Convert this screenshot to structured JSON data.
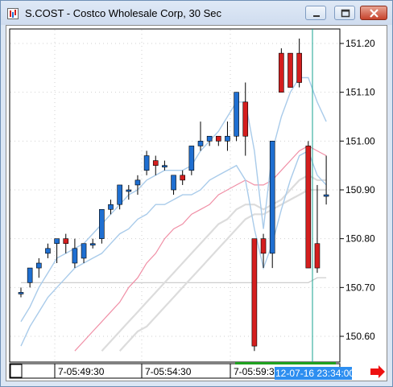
{
  "window": {
    "title": "S.COST - Costco Wholesale Corp, 30 Sec",
    "icons": {
      "app": "chart-app-icon",
      "minimize": "minimize-icon",
      "maximize": "maximize-icon",
      "close": "close-icon",
      "scroll": "right-arrow-icon"
    }
  },
  "chart_data": {
    "type": "candlestick",
    "symbol": "S.COST",
    "interval": "30 Sec",
    "y_ticks": [
      "151.20",
      "151.10",
      "151.00",
      "150.90",
      "150.80",
      "150.70",
      "150.60"
    ],
    "x_labels": [
      "7-05:49:30",
      "7-05:54:30",
      "7-05:59:3"
    ],
    "cursor_label": "12-07-16 23:34:00",
    "ylim": [
      150.55,
      151.25
    ],
    "grid": true,
    "colors": {
      "up": "#1f6fd1",
      "down": "#d41e1e",
      "band": "#a9cbea",
      "ma_pink": "#f08fa6",
      "ma_gray": "#dcdcdc",
      "ma_long": "#c8c8c8",
      "cursor": "#17a390",
      "cursor_label_bg": "#2d8ef0"
    },
    "candles": [
      {
        "o": 150.69,
        "h": 150.7,
        "l": 150.68,
        "c": 150.69
      },
      {
        "o": 150.71,
        "h": 150.74,
        "l": 150.7,
        "c": 150.74
      },
      {
        "o": 150.74,
        "h": 150.76,
        "l": 150.72,
        "c": 150.75
      },
      {
        "o": 150.77,
        "h": 150.79,
        "l": 150.76,
        "c": 150.78
      },
      {
        "o": 150.79,
        "h": 150.8,
        "l": 150.75,
        "c": 150.8
      },
      {
        "o": 150.8,
        "h": 150.81,
        "l": 150.77,
        "c": 150.79
      },
      {
        "o": 150.75,
        "h": 150.8,
        "l": 150.74,
        "c": 150.78
      },
      {
        "o": 150.76,
        "h": 150.79,
        "l": 150.75,
        "c": 150.79
      },
      {
        "o": 150.79,
        "h": 150.8,
        "l": 150.78,
        "c": 150.79
      },
      {
        "o": 150.8,
        "h": 150.86,
        "l": 150.79,
        "c": 150.86
      },
      {
        "o": 150.86,
        "h": 150.88,
        "l": 150.85,
        "c": 150.87
      },
      {
        "o": 150.87,
        "h": 150.91,
        "l": 150.86,
        "c": 150.91
      },
      {
        "o": 150.9,
        "h": 150.91,
        "l": 150.88,
        "c": 150.9
      },
      {
        "o": 150.91,
        "h": 150.93,
        "l": 150.89,
        "c": 150.92
      },
      {
        "o": 150.94,
        "h": 150.98,
        "l": 150.93,
        "c": 150.97
      },
      {
        "o": 150.96,
        "h": 150.97,
        "l": 150.93,
        "c": 150.95
      },
      {
        "o": 150.95,
        "h": 150.96,
        "l": 150.94,
        "c": 150.95
      },
      {
        "o": 150.9,
        "h": 150.93,
        "l": 150.89,
        "c": 150.93
      },
      {
        "o": 150.93,
        "h": 150.94,
        "l": 150.91,
        "c": 150.92
      },
      {
        "o": 150.94,
        "h": 150.99,
        "l": 150.93,
        "c": 150.99
      },
      {
        "o": 150.99,
        "h": 151.04,
        "l": 150.98,
        "c": 151.0
      },
      {
        "o": 151.0,
        "h": 151.01,
        "l": 150.99,
        "c": 151.01
      },
      {
        "o": 151.01,
        "h": 151.01,
        "l": 150.99,
        "c": 151.0
      },
      {
        "o": 151.0,
        "h": 151.04,
        "l": 150.98,
        "c": 151.01
      },
      {
        "o": 151.01,
        "h": 151.1,
        "l": 151.0,
        "c": 151.1
      },
      {
        "o": 151.08,
        "h": 151.12,
        "l": 150.97,
        "c": 151.01
      },
      {
        "o": 150.8,
        "h": 150.8,
        "l": 150.57,
        "c": 150.58
      },
      {
        "o": 150.8,
        "h": 150.81,
        "l": 150.74,
        "c": 150.77
      },
      {
        "o": 150.77,
        "h": 151.0,
        "l": 150.74,
        "c": 151.0
      },
      {
        "o": 151.18,
        "h": 151.19,
        "l": 151.1,
        "c": 151.1
      },
      {
        "o": 151.18,
        "h": 151.18,
        "l": 151.11,
        "c": 151.11
      },
      {
        "o": 151.18,
        "h": 151.21,
        "l": 151.11,
        "c": 151.12
      },
      {
        "o": 150.99,
        "h": 151.0,
        "l": 150.74,
        "c": 150.74
      },
      {
        "o": 150.79,
        "h": 150.91,
        "l": 150.73,
        "c": 150.74
      },
      {
        "o": 150.89,
        "h": 150.97,
        "l": 150.87,
        "c": 150.89
      }
    ],
    "bands": {
      "upper": [
        150.63,
        150.66,
        150.7,
        150.73,
        150.76,
        150.77,
        150.78,
        150.79,
        150.81,
        150.83,
        150.85,
        150.87,
        150.89,
        150.9,
        150.92,
        150.93,
        150.94,
        150.94,
        150.94,
        150.95,
        150.98,
        151.0,
        151.02,
        151.05,
        151.08,
        151.08,
        150.98,
        150.82,
        150.98,
        151.05,
        151.1,
        151.13,
        151.13,
        151.08,
        151.04
      ],
      "lower": [
        150.58,
        150.62,
        150.65,
        150.68,
        150.7,
        150.72,
        150.74,
        150.75,
        150.76,
        150.77,
        150.79,
        150.81,
        150.82,
        150.84,
        150.85,
        150.87,
        150.87,
        150.88,
        150.89,
        150.89,
        150.9,
        150.92,
        150.93,
        150.94,
        150.95,
        150.92,
        150.82,
        150.74,
        150.79,
        150.86,
        150.92,
        150.97,
        150.98,
        150.93,
        150.91
      ]
    },
    "ma_pink": [
      null,
      null,
      null,
      null,
      null,
      null,
      150.57,
      150.59,
      150.61,
      150.63,
      150.65,
      150.67,
      150.7,
      150.72,
      150.75,
      150.77,
      150.8,
      150.82,
      150.83,
      150.85,
      150.86,
      150.87,
      150.89,
      150.9,
      150.91,
      150.92,
      150.91,
      150.91,
      150.92,
      150.94,
      150.96,
      150.98,
      150.99,
      150.98,
      150.97
    ],
    "ma_gray": [
      [
        null,
        null,
        null,
        null,
        null,
        null,
        null,
        null,
        null,
        150.57,
        150.59,
        150.61,
        150.63,
        150.65,
        150.67,
        150.69,
        150.71,
        150.73,
        150.75,
        150.77,
        150.79,
        150.81,
        150.83,
        150.84,
        150.86,
        150.87,
        150.87,
        150.86,
        150.87,
        150.88,
        150.9,
        150.92,
        150.93,
        150.92,
        150.92
      ],
      [
        null,
        null,
        null,
        null,
        null,
        null,
        null,
        null,
        null,
        null,
        null,
        150.57,
        150.59,
        150.61,
        150.62,
        150.64,
        150.66,
        150.68,
        150.7,
        150.72,
        150.74,
        150.76,
        150.78,
        150.8,
        150.82,
        150.84,
        150.85,
        150.85,
        150.86,
        150.87,
        150.88,
        150.89,
        150.9,
        150.9,
        150.9
      ]
    ],
    "ma_long": [
      150.71,
      150.71,
      150.71,
      150.71,
      150.71,
      150.71,
      150.71,
      150.71,
      150.71,
      150.71,
      150.71,
      150.71,
      150.71,
      150.71,
      150.71,
      150.71,
      150.71,
      150.71,
      150.71,
      150.71,
      150.71,
      150.71,
      150.71,
      150.71,
      150.71,
      150.71,
      150.71,
      150.71,
      150.71,
      150.71,
      150.71,
      150.71,
      150.71,
      150.72,
      150.72
    ]
  }
}
